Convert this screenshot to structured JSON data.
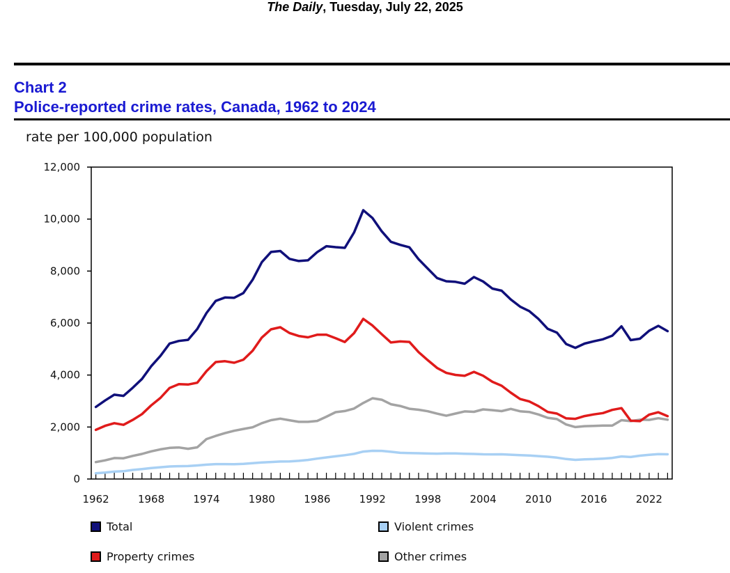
{
  "header": {
    "publication": "The Daily",
    "date": ", Tuesday, July 22, 2025"
  },
  "chart_number": "Chart 2",
  "chart_data": {
    "type": "line",
    "title": "Police-reported crime rates, Canada, 1962 to 2024",
    "ylabel": "rate per 100,000 population",
    "xlabel": "",
    "ylim": [
      0,
      12000
    ],
    "yticks": [
      "0",
      "2,000",
      "4,000",
      "6,000",
      "8,000",
      "10,000",
      "12,000"
    ],
    "ytick_values": [
      0,
      2000,
      4000,
      6000,
      8000,
      10000,
      12000
    ],
    "xtick_labels": [
      "1962",
      "1968",
      "1974",
      "1980",
      "1986",
      "1992",
      "1998",
      "2004",
      "2010",
      "2016",
      "2022"
    ],
    "xtick_years": [
      1962,
      1968,
      1974,
      1980,
      1986,
      1992,
      1998,
      2004,
      2010,
      2016,
      2022
    ],
    "grid": false,
    "legend_position": "bottom",
    "x": [
      1962,
      1963,
      1964,
      1965,
      1966,
      1967,
      1968,
      1969,
      1970,
      1971,
      1972,
      1973,
      1974,
      1975,
      1976,
      1977,
      1978,
      1979,
      1980,
      1981,
      1982,
      1983,
      1984,
      1985,
      1986,
      1987,
      1988,
      1989,
      1990,
      1991,
      1992,
      1993,
      1994,
      1995,
      1996,
      1997,
      1998,
      1999,
      2000,
      2001,
      2002,
      2003,
      2004,
      2005,
      2006,
      2007,
      2008,
      2009,
      2010,
      2011,
      2012,
      2013,
      2014,
      2015,
      2016,
      2017,
      2018,
      2019,
      2020,
      2021,
      2022,
      2023,
      2024
    ],
    "series": [
      {
        "name": "Total",
        "color": "#10107a",
        "values": [
          2771,
          3022,
          3245,
          3198,
          3511,
          3850,
          4336,
          4737,
          5212,
          5311,
          5355,
          5773,
          6388,
          6852,
          6984,
          6971,
          7154,
          7666,
          8343,
          8736,
          8773,
          8470,
          8387,
          8413,
          8727,
          8957,
          8919,
          8892,
          9485,
          10342,
          10040,
          9531,
          9125,
          9008,
          8914,
          8453,
          8092,
          7733,
          7607,
          7587,
          7514,
          7770,
          7600,
          7325,
          7245,
          6908,
          6631,
          6461,
          6159,
          5779,
          5632,
          5195,
          5046,
          5210,
          5297,
          5375,
          5514,
          5874,
          5344,
          5397,
          5704,
          5892,
          5690
        ]
      },
      {
        "name": "Property crimes",
        "color": "#e01b1b",
        "values": [
          1891,
          2047,
          2148,
          2083,
          2274,
          2496,
          2832,
          3121,
          3503,
          3647,
          3634,
          3704,
          4151,
          4499,
          4533,
          4474,
          4592,
          4933,
          5444,
          5759,
          5840,
          5617,
          5501,
          5450,
          5550,
          5553,
          5419,
          5271,
          5611,
          6160,
          5904,
          5571,
          5253,
          5292,
          5274,
          4881,
          4569,
          4276,
          4081,
          4004,
          3973,
          4121,
          3971,
          3739,
          3588,
          3321,
          3079,
          2985,
          2804,
          2580,
          2519,
          2333,
          2314,
          2422,
          2487,
          2537,
          2659,
          2727,
          2244,
          2225,
          2474,
          2568,
          2420
        ]
      },
      {
        "name": "Violent crimes",
        "color": "#a8d0f4",
        "values": [
          221,
          249,
          284,
          299,
          347,
          384,
          423,
          453,
          481,
          492,
          497,
          522,
          553,
          574,
          572,
          570,
          580,
          610,
          636,
          654,
          671,
          679,
          700,
          735,
          785,
          831,
          873,
          917,
          967,
          1056,
          1084,
          1081,
          1046,
          1007,
          1000,
          990,
          981,
          975,
          986,
          986,
          971,
          964,
          951,
          948,
          952,
          935,
          918,
          906,
          881,
          857,
          823,
          768,
          736,
          759,
          766,
          786,
          812,
          869,
          846,
          897,
          929,
          960,
          951
        ]
      },
      {
        "name": "Other crimes",
        "color": "#a3a3a3",
        "values": [
          652,
          718,
          807,
          798,
          889,
          965,
          1063,
          1141,
          1198,
          1214,
          1162,
          1218,
          1537,
          1659,
          1765,
          1856,
          1927,
          1991,
          2149,
          2264,
          2322,
          2262,
          2199,
          2199,
          2235,
          2397,
          2571,
          2613,
          2712,
          2924,
          3106,
          3051,
          2876,
          2810,
          2704,
          2665,
          2606,
          2516,
          2434,
          2517,
          2600,
          2585,
          2678,
          2650,
          2611,
          2697,
          2605,
          2580,
          2483,
          2355,
          2306,
          2098,
          1997,
          2034,
          2044,
          2058,
          2054,
          2264,
          2227,
          2282,
          2275,
          2339,
          2282
        ]
      }
    ]
  },
  "legend": [
    {
      "label": "Total",
      "color": "#10107a"
    },
    {
      "label": "Violent crimes",
      "color": "#a8d0f4"
    },
    {
      "label": "Property crimes",
      "color": "#e01b1b"
    },
    {
      "label": "Other crimes",
      "color": "#a3a3a3"
    }
  ]
}
